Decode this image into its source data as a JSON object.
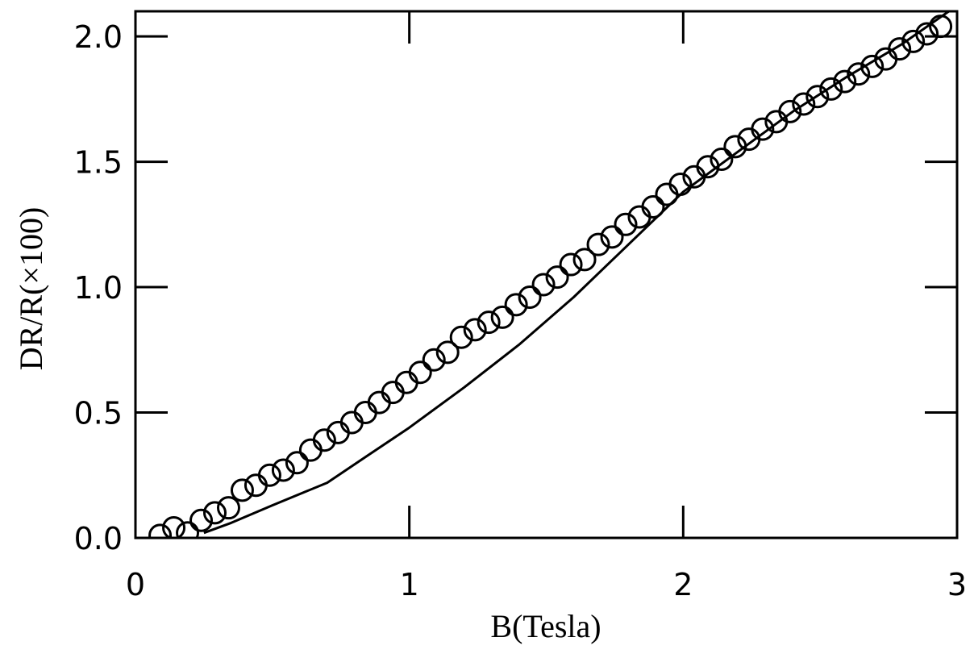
{
  "chart_data": {
    "type": "scatter",
    "title": "",
    "xlabel": "B(Tesla)",
    "ylabel": "DR/R(×100)",
    "xlim": [
      0,
      3
    ],
    "ylim": [
      0,
      2.1
    ],
    "xticks": [
      0,
      1,
      2,
      3
    ],
    "xtick_labels": [
      "0",
      "1",
      "2",
      "3"
    ],
    "yticks": [
      0,
      0.5,
      1.0,
      1.5,
      2.0
    ],
    "ytick_labels": [
      "0.0",
      "0.5",
      "1.0",
      "1.5",
      "2.0"
    ],
    "grid": false,
    "legend": "none",
    "colors": {
      "ink": "#000000",
      "background": "#ffffff"
    },
    "series": [
      {
        "kind": "scatter",
        "marker": "open-circle",
        "x": [
          0.09,
          0.14,
          0.19,
          0.24,
          0.29,
          0.34,
          0.39,
          0.44,
          0.49,
          0.54,
          0.59,
          0.64,
          0.69,
          0.74,
          0.79,
          0.84,
          0.89,
          0.94,
          0.99,
          1.04,
          1.09,
          1.14,
          1.19,
          1.24,
          1.29,
          1.34,
          1.39,
          1.44,
          1.49,
          1.54,
          1.59,
          1.64,
          1.69,
          1.74,
          1.79,
          1.84,
          1.89,
          1.94,
          1.99,
          2.04,
          2.09,
          2.14,
          2.19,
          2.24,
          2.29,
          2.34,
          2.39,
          2.44,
          2.49,
          2.54,
          2.59,
          2.64,
          2.69,
          2.74,
          2.79,
          2.84,
          2.89,
          2.94
        ],
        "y": [
          0.01,
          0.04,
          0.02,
          0.07,
          0.1,
          0.12,
          0.19,
          0.21,
          0.25,
          0.27,
          0.3,
          0.35,
          0.39,
          0.42,
          0.46,
          0.5,
          0.54,
          0.58,
          0.62,
          0.66,
          0.71,
          0.74,
          0.8,
          0.83,
          0.86,
          0.88,
          0.93,
          0.96,
          1.01,
          1.04,
          1.09,
          1.11,
          1.17,
          1.2,
          1.25,
          1.28,
          1.32,
          1.37,
          1.41,
          1.44,
          1.48,
          1.51,
          1.56,
          1.59,
          1.63,
          1.66,
          1.7,
          1.73,
          1.76,
          1.79,
          1.82,
          1.85,
          1.88,
          1.91,
          1.95,
          1.98,
          2.01,
          2.04
        ]
      },
      {
        "kind": "line",
        "x": [
          0.25,
          0.35,
          0.5,
          0.7,
          0.85,
          1.0,
          1.2,
          1.4,
          1.6,
          1.8,
          2.0,
          2.2,
          2.4,
          2.6,
          2.8,
          2.97
        ],
        "y": [
          0.02,
          0.06,
          0.13,
          0.22,
          0.33,
          0.44,
          0.6,
          0.77,
          0.96,
          1.17,
          1.38,
          1.54,
          1.7,
          1.84,
          1.97,
          2.1
        ]
      }
    ]
  }
}
